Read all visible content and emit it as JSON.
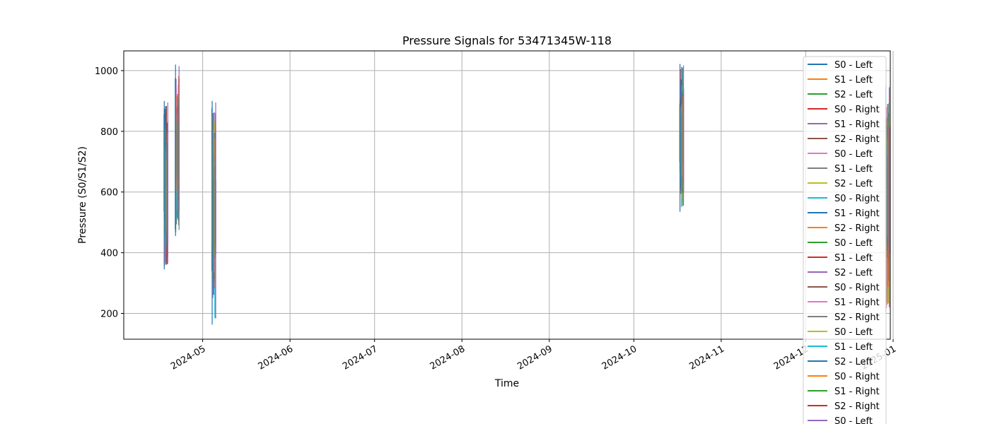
{
  "chart_data": {
    "type": "line",
    "title": "Pressure Signals for 53471345W-118",
    "xlabel": "Time",
    "ylabel": "Pressure (S0/S1/S2)",
    "xlim": [
      "2024-04-03",
      "2024-12-31"
    ],
    "ylim": [
      115,
      1065
    ],
    "x_ticks": [
      "2024-05",
      "2024-06",
      "2024-07",
      "2024-08",
      "2024-09",
      "2024-10",
      "2024-11",
      "2024-12",
      "2025-01"
    ],
    "y_ticks": [
      200,
      400,
      600,
      800,
      1000
    ],
    "grid": true,
    "legend_position": "top-right",
    "series": [
      {
        "name": "S0 - Left",
        "color": "#1f77b4"
      },
      {
        "name": "S1 - Left",
        "color": "#ff7f0e"
      },
      {
        "name": "S2 - Left",
        "color": "#2ca02c"
      },
      {
        "name": "S0 - Right",
        "color": "#d62728"
      },
      {
        "name": "S1 - Right",
        "color": "#9467bd"
      },
      {
        "name": "S2 - Right",
        "color": "#8c564b"
      },
      {
        "name": "S0 - Left",
        "color": "#e377c2"
      },
      {
        "name": "S1 - Left",
        "color": "#7f7f7f"
      },
      {
        "name": "S2 - Left",
        "color": "#bcbd22"
      },
      {
        "name": "S0 - Right",
        "color": "#17becf"
      },
      {
        "name": "S1 - Right",
        "color": "#1f77b4"
      },
      {
        "name": "S2 - Right",
        "color": "#ff7f0e"
      },
      {
        "name": "S0 - Left",
        "color": "#2ca02c"
      },
      {
        "name": "S1 - Left",
        "color": "#d62728"
      },
      {
        "name": "S2 - Left",
        "color": "#9467bd"
      },
      {
        "name": "S0 - Right",
        "color": "#8c564b"
      },
      {
        "name": "S1 - Right",
        "color": "#e377c2"
      },
      {
        "name": "S2 - Right",
        "color": "#7f7f7f"
      },
      {
        "name": "S0 - Left",
        "color": "#bcbd22"
      },
      {
        "name": "S1 - Left",
        "color": "#17becf"
      },
      {
        "name": "S2 - Left",
        "color": "#1f77b4"
      },
      {
        "name": "S0 - Right",
        "color": "#ff7f0e"
      },
      {
        "name": "S1 - Right",
        "color": "#2ca02c"
      },
      {
        "name": "S2 - Right",
        "color": "#d62728"
      },
      {
        "name": "S0 - Left",
        "color": "#9467bd"
      }
    ],
    "clusters": [
      {
        "date": "2024-04-18",
        "ymin": 345,
        "ymax": 900
      },
      {
        "date": "2024-04-22",
        "ymin": 455,
        "ymax": 1020
      },
      {
        "date": "2024-05-05",
        "ymin": 163,
        "ymax": 900
      },
      {
        "date": "2024-10-18",
        "ymin": 535,
        "ymax": 1022
      },
      {
        "date": "2024-12-30",
        "ymin": 200,
        "ymax": 950
      }
    ]
  }
}
